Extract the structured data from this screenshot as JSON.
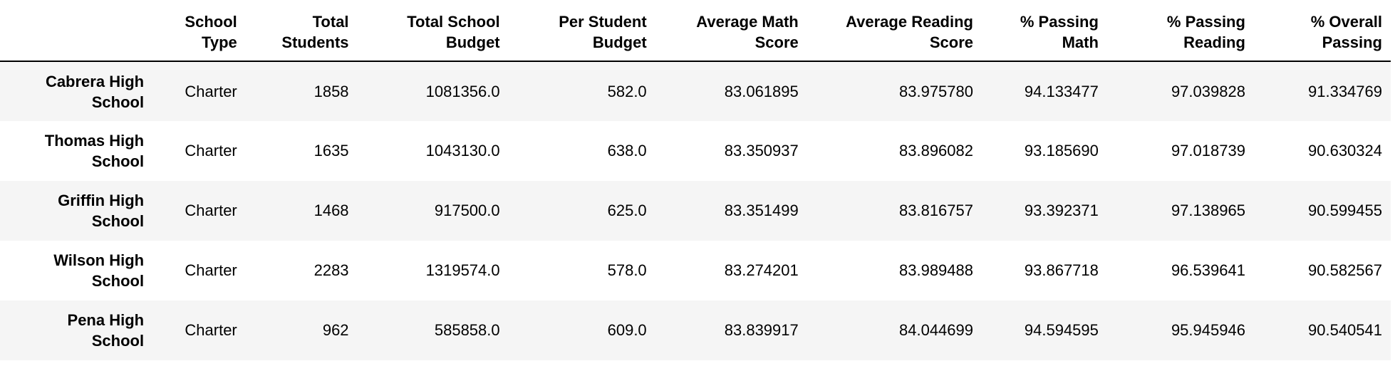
{
  "table": {
    "columns": [
      "School Type",
      "Total Students",
      "Total School Budget",
      "Per Student Budget",
      "Average Math Score",
      "Average Reading Score",
      "% Passing Math",
      "% Passing Reading",
      "% Overall Passing"
    ],
    "column_lines": [
      [
        "School",
        "Type"
      ],
      [
        "Total",
        "Students"
      ],
      [
        "Total School",
        "Budget"
      ],
      [
        "Per Student",
        "Budget"
      ],
      [
        "Average Math",
        "Score"
      ],
      [
        "Average Reading",
        "Score"
      ],
      [
        "% Passing",
        "Math"
      ],
      [
        "% Passing",
        "Reading"
      ],
      [
        "% Overall",
        "Passing"
      ]
    ],
    "rows": [
      {
        "name_lines": [
          "Cabrera High",
          "School"
        ],
        "cells": [
          "Charter",
          "1858",
          "1081356.0",
          "582.0",
          "83.061895",
          "83.975780",
          "94.133477",
          "97.039828",
          "91.334769"
        ]
      },
      {
        "name_lines": [
          "Thomas High",
          "School"
        ],
        "cells": [
          "Charter",
          "1635",
          "1043130.0",
          "638.0",
          "83.350937",
          "83.896082",
          "93.185690",
          "97.018739",
          "90.630324"
        ]
      },
      {
        "name_lines": [
          "Griffin High",
          "School"
        ],
        "cells": [
          "Charter",
          "1468",
          "917500.0",
          "625.0",
          "83.351499",
          "83.816757",
          "93.392371",
          "97.138965",
          "90.599455"
        ]
      },
      {
        "name_lines": [
          "Wilson High",
          "School"
        ],
        "cells": [
          "Charter",
          "2283",
          "1319574.0",
          "578.0",
          "83.274201",
          "83.989488",
          "93.867718",
          "96.539641",
          "90.582567"
        ]
      },
      {
        "name_lines": [
          "Pena High",
          "School"
        ],
        "cells": [
          "Charter",
          "962",
          "585858.0",
          "609.0",
          "83.839917",
          "84.044699",
          "94.594595",
          "95.945946",
          "90.540541"
        ]
      }
    ]
  }
}
